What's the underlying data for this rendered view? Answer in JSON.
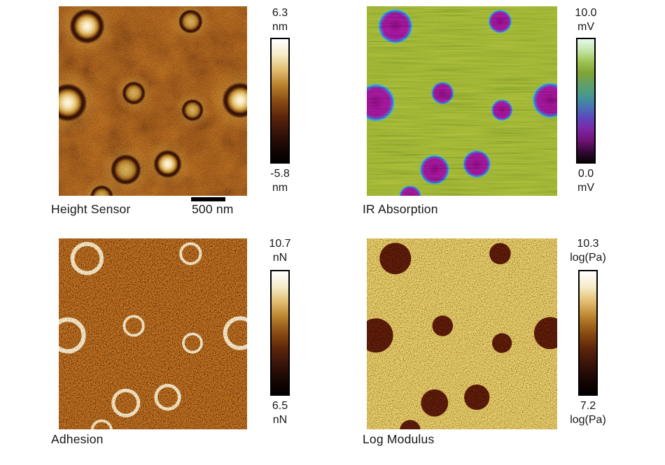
{
  "figure": {
    "type": "AFM microscopy four-panel figure",
    "background": "#ffffff",
    "text_color": "#161616"
  },
  "panels": [
    {
      "id": "height",
      "label": "Height Sensor",
      "scale_bar": {
        "label": "500 nm"
      },
      "colorbar": {
        "max_value": "6.3",
        "max_unit": "nm",
        "min_value": "-5.8",
        "min_unit": "nm",
        "colormap": "afm_gold"
      },
      "render": {
        "style": "domes",
        "background": "#7a4414",
        "dome_bright": "#fdf8e2",
        "dome_dim": "#cf9c4c",
        "ring": "#2e1206",
        "glow": "#d8a64a"
      }
    },
    {
      "id": "ir",
      "label": "IR Absorption",
      "colorbar": {
        "max_value": "10.0",
        "max_unit": "mV",
        "min_value": "0.0",
        "min_unit": "mV",
        "colormap": "ir_green_purple"
      },
      "render": {
        "style": "filled",
        "background": "#8aa42c",
        "fill": "#86127e",
        "fill_deep": "#700a66",
        "rim_violet": "#6136a8",
        "rim_blue": "#3f55b6",
        "rim_cyan": "#2f9fbc"
      }
    },
    {
      "id": "adhesion",
      "label": "Adhesion",
      "colorbar": {
        "max_value": "10.7",
        "max_unit": "nN",
        "min_value": "6.5",
        "min_unit": "nN",
        "colormap": "afm_gold"
      },
      "render": {
        "style": "rings",
        "background": "#743e0e",
        "ring": "#eed9a4"
      }
    },
    {
      "id": "modulus",
      "label": "Log Modulus",
      "colorbar": {
        "max_value": "10.3",
        "max_unit": "log(Pa)",
        "min_value": "7.2",
        "min_unit": "log(Pa)",
        "colormap": "afm_gold"
      },
      "render": {
        "style": "disks",
        "background": "#bb913f",
        "fill": "#3a0e04"
      }
    }
  ],
  "colormaps": {
    "afm_gold": [
      "#ffffff",
      "#f6ecc8",
      "#e2bc6e",
      "#b8802c",
      "#8a4c12",
      "#5e260a",
      "#3a140a",
      "#1a0704",
      "#000000"
    ],
    "ir_green_purple": [
      "#e4f8ee",
      "#c4e6a8",
      "#a0c454",
      "#7fa432",
      "#62a066",
      "#479a8e",
      "#4677b2",
      "#5c48be",
      "#7c28a6",
      "#701478",
      "#38093a",
      "#050505"
    ]
  },
  "domains": [
    {
      "cx": 0.15,
      "cy": 0.105,
      "r": 0.088,
      "tone": "bright"
    },
    {
      "cx": 0.7,
      "cy": 0.08,
      "r": 0.06,
      "tone": "dim"
    },
    {
      "cx": 0.048,
      "cy": 0.508,
      "r": 0.096,
      "tone": "bright"
    },
    {
      "cx": 0.398,
      "cy": 0.458,
      "r": 0.058,
      "tone": "dim"
    },
    {
      "cx": 0.71,
      "cy": 0.548,
      "r": 0.055,
      "tone": "dim"
    },
    {
      "cx": 0.963,
      "cy": 0.496,
      "r": 0.09,
      "tone": "bright"
    },
    {
      "cx": 0.356,
      "cy": 0.862,
      "r": 0.076,
      "tone": "dim"
    },
    {
      "cx": 0.578,
      "cy": 0.832,
      "r": 0.071,
      "tone": "bright"
    },
    {
      "cx": 0.228,
      "cy": 1.005,
      "r": 0.058,
      "tone": "dim"
    }
  ]
}
